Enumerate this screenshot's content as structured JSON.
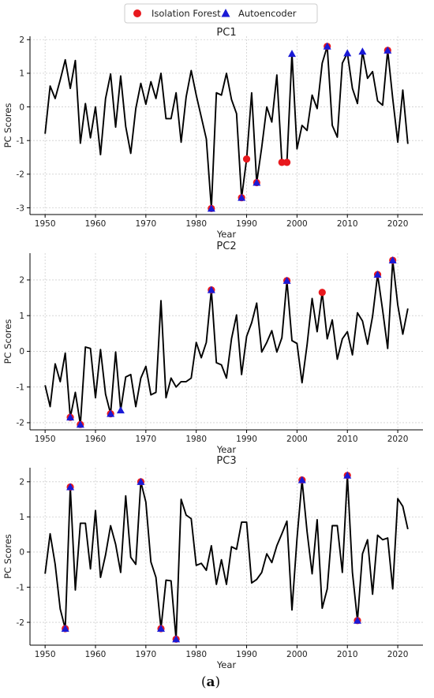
{
  "chart_data": [
    {
      "type": "line",
      "title": "PC1",
      "xlabel": "Year",
      "ylabel": "PC Scores",
      "xlim": [
        1947,
        2025
      ],
      "ylim": [
        -3.2,
        2.1
      ],
      "xticks": [
        1950,
        1960,
        1970,
        1980,
        1990,
        2000,
        2010,
        2020
      ],
      "yticks": [
        -3,
        -2,
        -1,
        0,
        1,
        2
      ],
      "grid": true,
      "series": [
        {
          "name": "",
          "x": [
            1950,
            1951,
            1952,
            1953,
            1954,
            1955,
            1956,
            1957,
            1958,
            1959,
            1960,
            1961,
            1962,
            1963,
            1964,
            1965,
            1966,
            1967,
            1968,
            1969,
            1970,
            1971,
            1972,
            1973,
            1974,
            1975,
            1976,
            1977,
            1978,
            1979,
            1980,
            1981,
            1982,
            1983,
            1984,
            1985,
            1986,
            1987,
            1988,
            1989,
            1990,
            1991,
            1992,
            1993,
            1994,
            1995,
            1996,
            1997,
            1998,
            1999,
            2000,
            2001,
            2002,
            2003,
            2004,
            2005,
            2006,
            2007,
            2008,
            2009,
            2010,
            2011,
            2012,
            2013,
            2014,
            2015,
            2016,
            2017,
            2018,
            2019,
            2020,
            2021,
            2022
          ],
          "y": [
            -0.8,
            0.62,
            0.25,
            0.8,
            1.4,
            0.55,
            1.38,
            -1.08,
            0.1,
            -0.92,
            0.0,
            -1.42,
            0.25,
            0.98,
            -0.6,
            0.92,
            -0.58,
            -1.38,
            -0.05,
            0.7,
            0.08,
            0.75,
            0.25,
            1.0,
            -0.35,
            -0.35,
            0.42,
            -1.05,
            0.3,
            1.08,
            0.35,
            -0.3,
            -0.95,
            -3.02,
            0.42,
            0.35,
            1.0,
            0.22,
            -0.2,
            -2.7,
            -1.55,
            0.42,
            -2.25,
            -1.2,
            0.0,
            -0.45,
            0.95,
            -1.65,
            -1.65,
            1.58,
            -1.25,
            -0.55,
            -0.7,
            0.35,
            -0.05,
            1.3,
            1.8,
            -0.55,
            -0.9,
            1.3,
            1.6,
            0.55,
            0.1,
            1.65,
            0.85,
            1.05,
            0.18,
            0.05,
            1.68,
            0.25,
            -1.05,
            0.5,
            -1.1
          ]
        }
      ],
      "anomalies": {
        "isolation_forest_x": [
          1983,
          1989,
          1990,
          1992,
          1997,
          1998,
          2006,
          2018
        ],
        "autoencoder_x": [
          1983,
          1989,
          1992,
          1999,
          2006,
          2010,
          2013,
          2018
        ]
      }
    },
    {
      "type": "line",
      "title": "PC2",
      "xlabel": "Year",
      "ylabel": "PC Scores",
      "xlim": [
        1947,
        2025
      ],
      "ylim": [
        -2.2,
        2.75
      ],
      "xticks": [
        1950,
        1960,
        1970,
        1980,
        1990,
        2000,
        2010,
        2020
      ],
      "yticks": [
        -2,
        -1,
        0,
        1,
        2
      ],
      "grid": true,
      "series": [
        {
          "name": "",
          "x": [
            1950,
            1951,
            1952,
            1953,
            1954,
            1955,
            1956,
            1957,
            1958,
            1959,
            1960,
            1961,
            1962,
            1963,
            1964,
            1965,
            1966,
            1967,
            1968,
            1969,
            1970,
            1971,
            1972,
            1973,
            1974,
            1975,
            1976,
            1977,
            1978,
            1979,
            1980,
            1981,
            1982,
            1983,
            1984,
            1985,
            1986,
            1987,
            1988,
            1989,
            1990,
            1991,
            1992,
            1993,
            1994,
            1995,
            1996,
            1997,
            1998,
            1999,
            2000,
            2001,
            2002,
            2003,
            2004,
            2005,
            2006,
            2007,
            2008,
            2009,
            2010,
            2011,
            2012,
            2013,
            2014,
            2015,
            2016,
            2017,
            2018,
            2019,
            2020,
            2021,
            2022
          ],
          "y": [
            -0.95,
            -1.55,
            -0.35,
            -0.85,
            -0.05,
            -1.85,
            -1.15,
            -2.05,
            0.12,
            0.08,
            -1.3,
            0.05,
            -1.2,
            -1.75,
            -0.02,
            -1.65,
            -0.72,
            -0.65,
            -1.55,
            -0.75,
            -0.42,
            -1.22,
            -1.15,
            1.42,
            -1.3,
            -0.75,
            -1.0,
            -0.85,
            -0.85,
            -0.75,
            0.25,
            -0.18,
            0.25,
            1.72,
            -0.32,
            -0.38,
            -0.75,
            0.35,
            1.02,
            -0.65,
            0.42,
            0.8,
            1.35,
            -0.02,
            0.25,
            0.58,
            -0.02,
            0.38,
            1.98,
            0.3,
            0.22,
            -0.88,
            0.18,
            1.48,
            0.55,
            1.65,
            0.35,
            0.88,
            -0.22,
            0.35,
            0.55,
            -0.1,
            1.08,
            0.85,
            0.2,
            0.98,
            2.15,
            1.15,
            0.08,
            2.55,
            1.3,
            0.48,
            1.2
          ]
        }
      ],
      "anomalies": {
        "isolation_forest_x": [
          1955,
          1957,
          1963,
          1983,
          1998,
          2005,
          2016,
          2019
        ],
        "autoencoder_x": [
          1955,
          1957,
          1963,
          1965,
          1983,
          1998,
          2016,
          2019
        ]
      }
    },
    {
      "type": "line",
      "title": "PC3",
      "xlabel": "Year",
      "ylabel": "PC Scores",
      "xlim": [
        1947,
        2025
      ],
      "ylim": [
        -2.65,
        2.4
      ],
      "xticks": [
        1950,
        1960,
        1970,
        1980,
        1990,
        2000,
        2010,
        2020
      ],
      "yticks": [
        -2,
        -1,
        0,
        1,
        2
      ],
      "grid": true,
      "series": [
        {
          "name": "",
          "x": [
            1950,
            1951,
            1952,
            1953,
            1954,
            1955,
            1956,
            1957,
            1958,
            1959,
            1960,
            1961,
            1962,
            1963,
            1964,
            1965,
            1966,
            1967,
            1968,
            1969,
            1970,
            1971,
            1972,
            1973,
            1974,
            1975,
            1976,
            1977,
            1978,
            1979,
            1980,
            1981,
            1982,
            1983,
            1984,
            1985,
            1986,
            1987,
            1988,
            1989,
            1990,
            1991,
            1992,
            1993,
            1994,
            1995,
            1996,
            1997,
            1998,
            1999,
            2000,
            2001,
            2002,
            2003,
            2004,
            2005,
            2006,
            2007,
            2008,
            2009,
            2010,
            2011,
            2012,
            2013,
            2014,
            2015,
            2016,
            2017,
            2018,
            2019,
            2020,
            2021,
            2022
          ],
          "y": [
            -0.62,
            0.52,
            -0.35,
            -1.62,
            -2.18,
            1.85,
            -1.08,
            0.82,
            0.82,
            -0.48,
            1.18,
            -0.72,
            -0.08,
            0.75,
            0.22,
            -0.58,
            1.6,
            -0.15,
            -0.35,
            2.0,
            1.42,
            -0.28,
            -0.72,
            -2.18,
            -0.8,
            -0.82,
            -2.48,
            1.5,
            1.05,
            0.95,
            -0.38,
            -0.32,
            -0.52,
            0.18,
            -0.92,
            -0.22,
            -0.92,
            0.15,
            0.08,
            0.85,
            0.85,
            -0.88,
            -0.78,
            -0.58,
            -0.05,
            -0.3,
            0.18,
            0.52,
            0.88,
            -1.65,
            0.38,
            2.05,
            0.58,
            -0.62,
            0.92,
            -1.6,
            -1.05,
            0.75,
            0.75,
            -0.58,
            2.18,
            -0.58,
            -1.95,
            -0.05,
            0.35,
            -1.2,
            0.48,
            0.35,
            0.4,
            -1.05,
            1.52,
            1.3,
            0.65
          ]
        }
      ],
      "anomalies": {
        "isolation_forest_x": [
          1954,
          1955,
          1969,
          1973,
          1976,
          2001,
          2010,
          2012
        ],
        "autoencoder_x": [
          1954,
          1955,
          1969,
          1973,
          1976,
          2001,
          2010,
          2012
        ]
      }
    }
  ],
  "legend": {
    "placement": "top-center",
    "items": [
      {
        "label": "Isolation Forest",
        "marker": "circle",
        "color": "#e8191e"
      },
      {
        "label": "Autoencoder",
        "marker": "triangle",
        "color": "#1a1ad6"
      }
    ]
  },
  "colors": {
    "line": "#000000",
    "grid": "#cfcfcf",
    "isolation_forest": "#e8191e",
    "autoencoder": "#1a1ad6"
  },
  "caption": {
    "open": "(",
    "letter": "a",
    "close": ")"
  }
}
